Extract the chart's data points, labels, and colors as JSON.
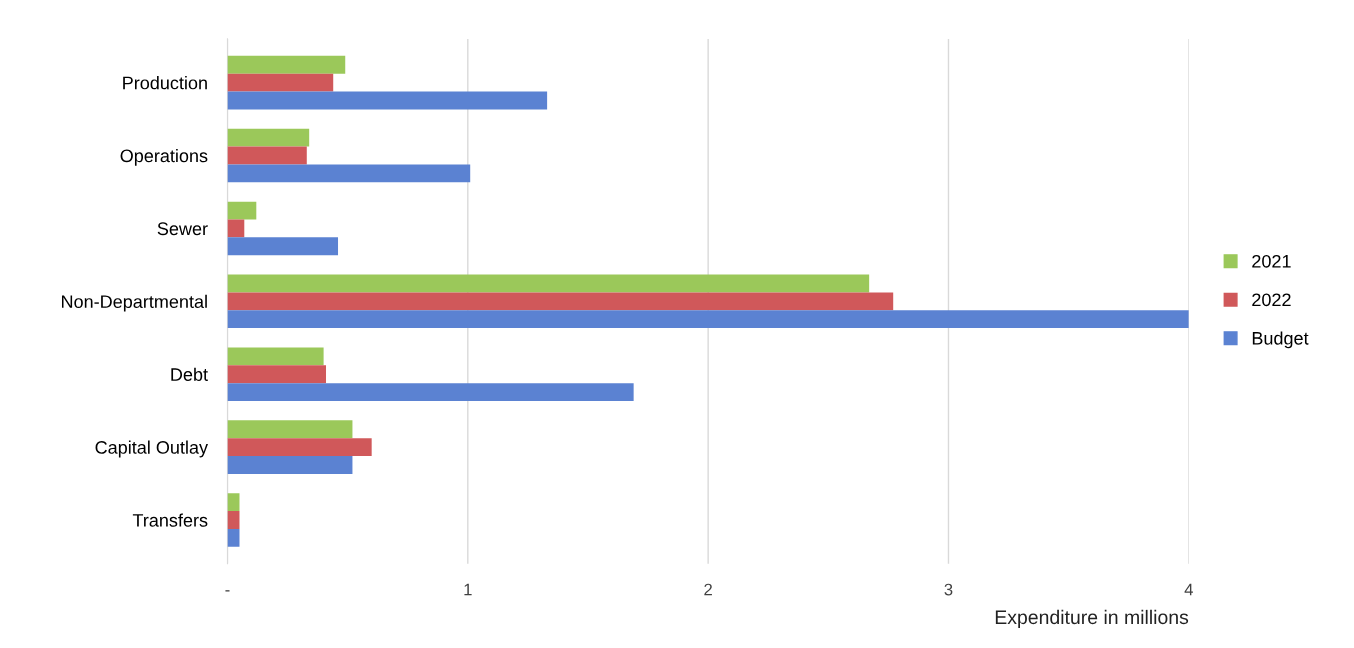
{
  "chart_data": {
    "type": "bar",
    "orientation": "horizontal",
    "xlabel": "Expenditure in millions",
    "categories": [
      "Production",
      "Operations",
      "Sewer",
      "Non-Departmental",
      "Debt",
      "Capital Outlay",
      "Transfers"
    ],
    "series": [
      {
        "name": "2021",
        "color": "#9bc85a",
        "values": [
          0.49,
          0.34,
          0.12,
          2.67,
          0.4,
          0.52,
          0.05
        ]
      },
      {
        "name": "2022",
        "color": "#d0585a",
        "values": [
          0.44,
          0.33,
          0.07,
          2.77,
          0.41,
          0.6,
          0.05
        ]
      },
      {
        "name": "Budget",
        "color": "#5b82d2",
        "values": [
          1.33,
          1.01,
          0.46,
          4.0,
          1.69,
          0.52,
          0.05
        ]
      }
    ],
    "xlim": [
      0,
      4
    ],
    "xticks": [
      {
        "value": 0,
        "label": "-"
      },
      1,
      2,
      3,
      4
    ],
    "grid": "x",
    "legend": "right"
  }
}
